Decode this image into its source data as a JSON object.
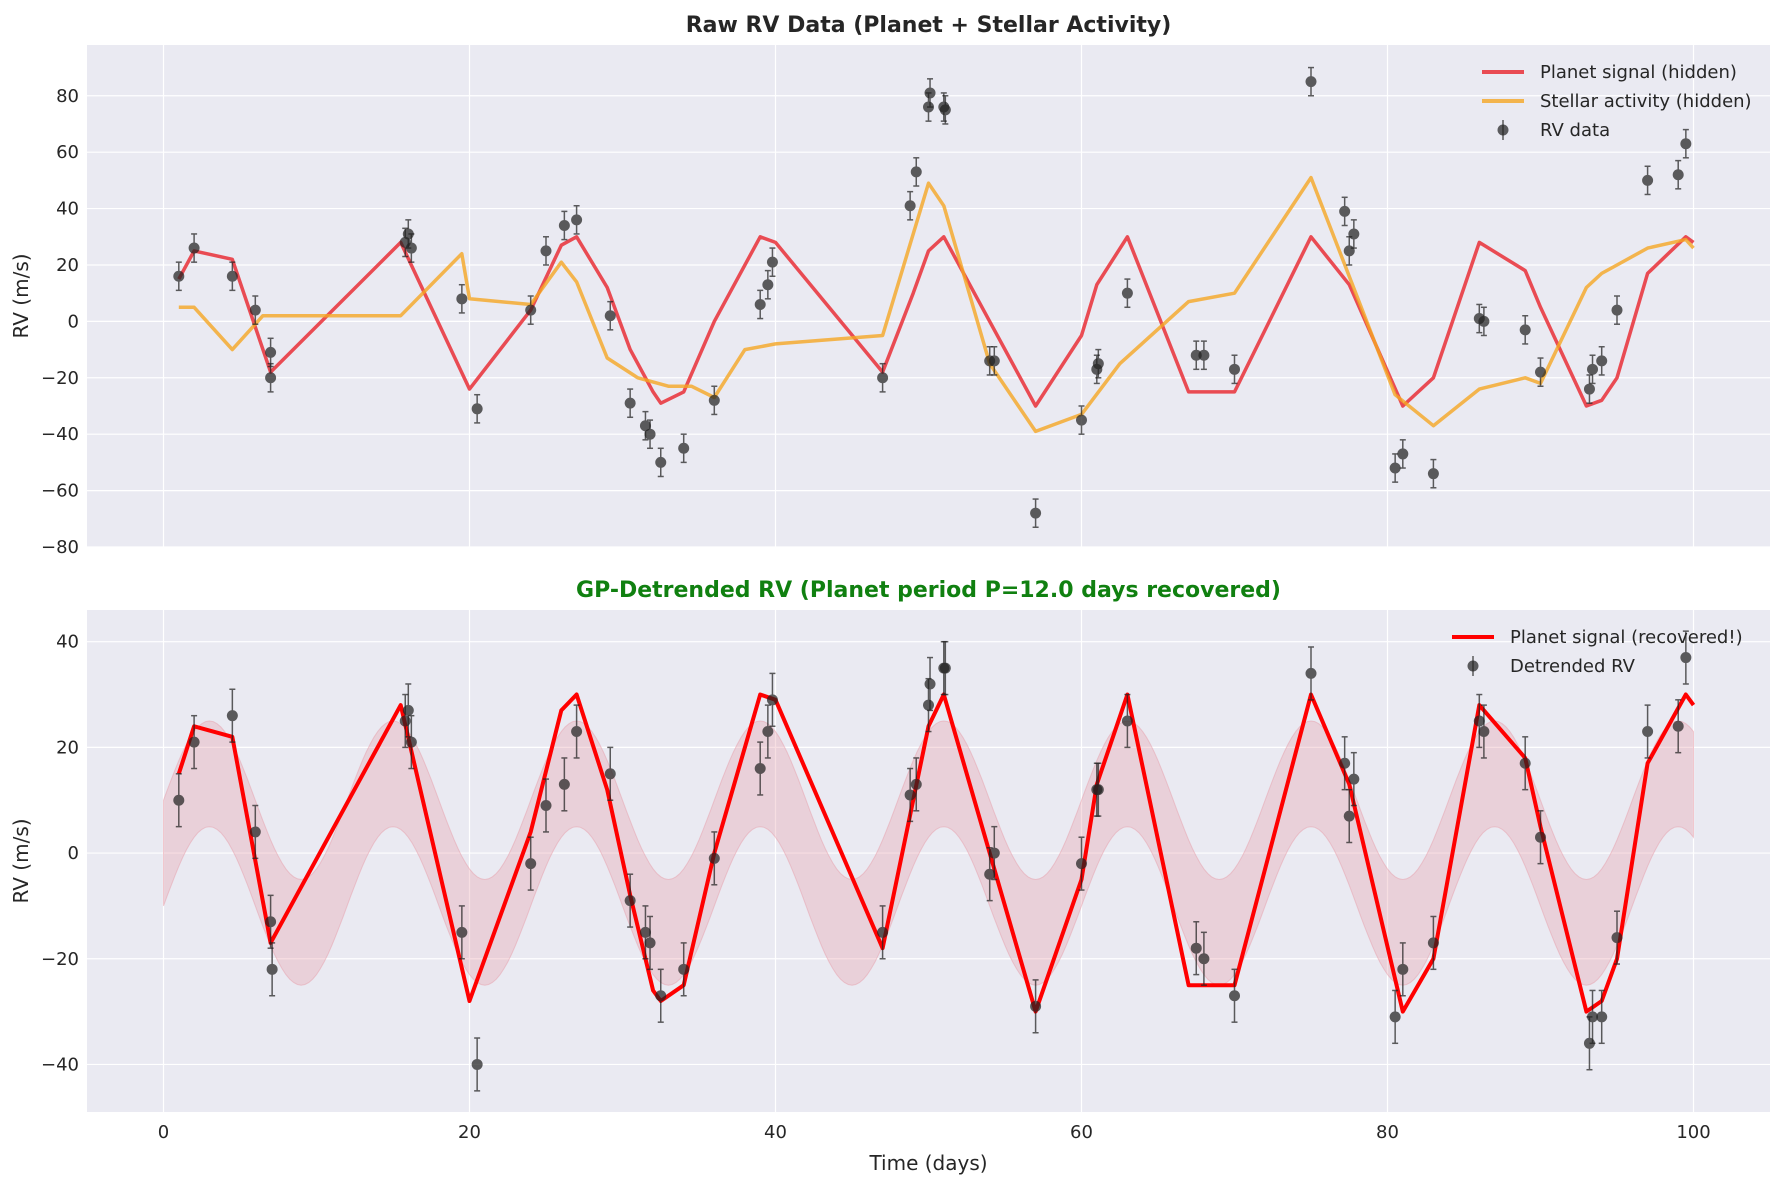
{
  "colors": {
    "panel_bg": "#EAEAF2",
    "grid": "#FFFFFF",
    "planet": "#E8232B",
    "stellar": "#F5A623",
    "data": "#222222",
    "band": "#E8A0AC",
    "title2": "#108010"
  },
  "chart_data": [
    {
      "type": "line",
      "title": "Raw RV Data (Planet + Stellar Activity)",
      "xlabel": "",
      "ylabel": "RV (m/s)",
      "xlim": [
        -5,
        105
      ],
      "ylim": [
        -80,
        98
      ],
      "xticks": [
        0,
        20,
        40,
        60,
        80,
        100
      ],
      "yticks": [
        -80,
        -60,
        -40,
        -20,
        0,
        20,
        40,
        60,
        80
      ],
      "grid": true,
      "legend_position": "top-right",
      "legend": [
        "Planet signal (hidden)",
        "Stellar activity (hidden)",
        "RV data"
      ],
      "series": [
        {
          "name": "Planet signal (hidden)",
          "kind": "line",
          "x": [
            1,
            2,
            4.5,
            7,
            15.5,
            20,
            24,
            26,
            27,
            29,
            30.5,
            32,
            32.5,
            34,
            36,
            39,
            40,
            47,
            49,
            50,
            51,
            54,
            57,
            60,
            61,
            63,
            67,
            70,
            75,
            77.5,
            81,
            83,
            86,
            89,
            90,
            93,
            94,
            95,
            97,
            99.5,
            100
          ],
          "y": [
            15,
            25,
            22,
            -18,
            28,
            -24,
            4,
            27,
            30,
            12,
            -10,
            -25,
            -29,
            -25,
            0,
            30,
            28,
            -18,
            10,
            25,
            30,
            0,
            -30,
            -5,
            13,
            30,
            -25,
            -25,
            30,
            13,
            -30,
            -20,
            28,
            18,
            5,
            -30,
            -28,
            -20,
            17,
            30,
            28
          ]
        },
        {
          "name": "Stellar activity (hidden)",
          "kind": "line",
          "x": [
            1,
            2,
            4.5,
            6.5,
            15.5,
            19.5,
            20,
            24,
            26,
            27,
            29,
            31,
            33,
            34.5,
            36,
            38,
            40,
            47,
            50,
            51,
            54,
            57,
            60,
            62.5,
            67,
            70,
            75,
            80.5,
            83,
            86,
            89,
            90,
            93,
            94,
            95,
            97,
            99.5,
            100
          ],
          "y": [
            5,
            5,
            -10,
            2,
            2,
            24,
            8,
            6,
            21,
            14,
            -13,
            -20,
            -23,
            -23,
            -27,
            -10,
            -8,
            -5,
            49,
            41,
            -15,
            -39,
            -33,
            -15,
            7,
            10,
            51,
            -26,
            -37,
            -24,
            -20,
            -22,
            12,
            17,
            20,
            26,
            29,
            26
          ]
        },
        {
          "name": "RV data",
          "kind": "errorbar",
          "yerr": 5,
          "x": [
            1,
            2,
            4.5,
            6,
            7,
            7,
            15.8,
            16,
            16.2,
            19.5,
            20.5,
            24,
            25,
            26.2,
            27,
            29.2,
            30.5,
            31.5,
            31.8,
            32.5,
            34,
            36,
            39,
            39.5,
            39.8,
            47,
            48.8,
            49.2,
            50,
            50.1,
            51,
            51.1,
            54,
            54.3,
            57,
            60,
            61,
            61.1,
            63,
            67.5,
            68,
            70,
            75,
            77.2,
            77.5,
            77.8,
            80.5,
            81,
            83,
            86,
            86.3,
            89,
            90,
            93.2,
            93.4,
            94,
            95,
            97,
            99,
            99.5
          ],
          "y": [
            16,
            26,
            16,
            4,
            -11,
            -20,
            28,
            31,
            26,
            8,
            -31,
            4,
            25,
            34,
            36,
            2,
            -29,
            -37,
            -40,
            -50,
            -45,
            -28,
            6,
            13,
            21,
            -20,
            41,
            53,
            76,
            81,
            76,
            75,
            -14,
            -14,
            -68,
            -35,
            -17,
            -15,
            10,
            -12,
            -12,
            -17,
            85,
            39,
            25,
            31,
            -52,
            -47,
            -54,
            1,
            0,
            -3,
            -18,
            -24,
            -17,
            -14,
            4,
            50,
            52,
            63
          ]
        }
      ]
    },
    {
      "type": "line",
      "title": "GP-Detrended RV (Planet period P=12.0 days recovered)",
      "xlabel": "Time (days)",
      "ylabel": "RV (m/s)",
      "xlim": [
        -5,
        105
      ],
      "ylim": [
        -49,
        46
      ],
      "xticks": [
        0,
        20,
        40,
        60,
        80,
        100
      ],
      "yticks": [
        -40,
        -20,
        0,
        20,
        40
      ],
      "grid": true,
      "legend_position": "top-right",
      "legend": [
        "Planet signal (recovered!)",
        "Detrended RV"
      ],
      "band": {
        "period": 12.0,
        "phase_peak": 3,
        "center_amplitude": 15,
        "half_width": 10,
        "x_start": 0,
        "x_end": 100
      },
      "series": [
        {
          "name": "Planet signal (recovered!)",
          "kind": "line",
          "x": [
            1,
            2,
            4.5,
            7,
            15.5,
            20,
            24,
            26,
            27,
            29,
            30.5,
            32,
            32.5,
            34,
            36,
            39,
            40,
            47,
            49,
            50,
            51,
            54,
            57,
            60,
            61,
            63,
            67,
            70,
            75,
            77.5,
            81,
            83,
            86,
            89,
            90,
            93,
            94,
            95,
            97,
            99.5,
            100
          ],
          "y": [
            15,
            24,
            22,
            -17,
            28,
            -28,
            4,
            27,
            30,
            12,
            -8,
            -26,
            -28,
            -25,
            0,
            30,
            29,
            -18,
            10,
            24,
            30,
            0,
            -30,
            -5,
            13,
            30,
            -25,
            -25,
            30,
            13,
            -30,
            -20,
            28,
            18,
            5,
            -30,
            -28,
            -20,
            17,
            30,
            28
          ]
        },
        {
          "name": "Detrended RV",
          "kind": "errorbar",
          "yerr": 5,
          "x": [
            1,
            2,
            4.5,
            6,
            7,
            7.1,
            15.8,
            16,
            16.2,
            19.5,
            20.5,
            24,
            25,
            26.2,
            27,
            29.2,
            30.5,
            31.5,
            31.8,
            32.5,
            34,
            36,
            39,
            39.5,
            39.8,
            47,
            48.8,
            49.2,
            50,
            50.1,
            51,
            51.1,
            54,
            54.3,
            57,
            60,
            61,
            61.1,
            63,
            67.5,
            68,
            70,
            75,
            77.2,
            77.5,
            77.8,
            80.5,
            81,
            83,
            86,
            86.3,
            89,
            90,
            93.2,
            93.4,
            94,
            95,
            97,
            99,
            99.5
          ],
          "y": [
            10,
            21,
            26,
            4,
            -13,
            -22,
            25,
            27,
            21,
            -15,
            -40,
            -2,
            9,
            13,
            23,
            15,
            -9,
            -15,
            -17,
            -27,
            -22,
            -1,
            16,
            23,
            29,
            -15,
            11,
            13,
            28,
            32,
            35,
            35,
            -4,
            0,
            -29,
            -2,
            12,
            12,
            25,
            -18,
            -20,
            -27,
            34,
            17,
            7,
            14,
            -31,
            -22,
            -17,
            25,
            23,
            17,
            3,
            -36,
            -31,
            -31,
            -16,
            23,
            24,
            37
          ]
        }
      ]
    }
  ]
}
